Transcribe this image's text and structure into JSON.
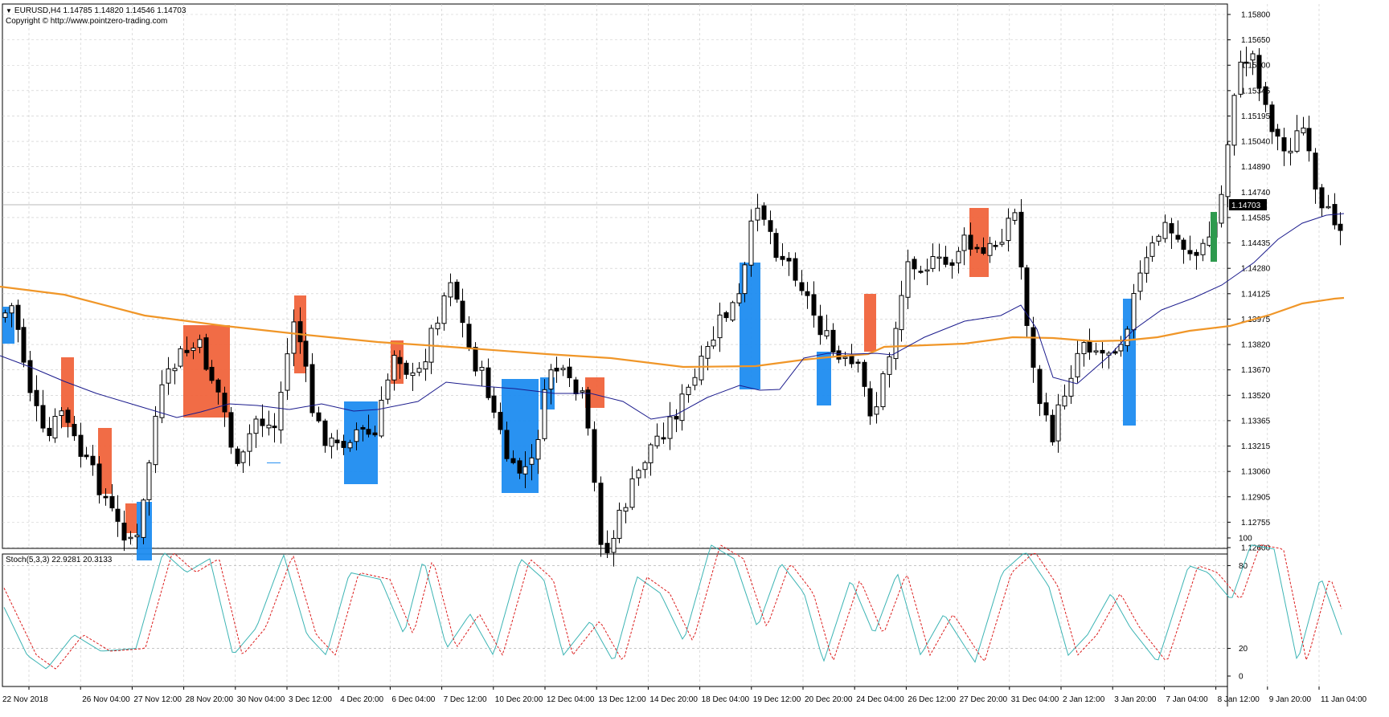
{
  "header": {
    "symbol_line": "EURUSD,H4  1.14785 1.14820 1.14546 1.14703",
    "copyright": "Copyright © http://www.pointzero-trading.com"
  },
  "price_axis": {
    "labels": [
      "1.15800",
      "1.15650",
      "1.15500",
      "1.15345",
      "1.15195",
      "1.15040",
      "1.14890",
      "1.14740",
      "1.14585",
      "1.14435",
      "1.14280",
      "1.14125",
      "1.13975",
      "1.13820",
      "1.13670",
      "1.13520",
      "1.13365",
      "1.13215",
      "1.13060",
      "1.12905",
      "1.12755",
      "1.12600"
    ],
    "current_price": "1.14703"
  },
  "stoch": {
    "label": "Stoch(5,3,3) 22.9281 20.3133",
    "levels": [
      "100",
      "80",
      "20",
      "0"
    ]
  },
  "time_axis": {
    "labels": [
      "22 Nov 2018",
      "26 Nov 04:00",
      "27 Nov 12:00",
      "28 Nov 20:00",
      "30 Nov 04:00",
      "3 Dec 12:00",
      "4 Dec 20:00",
      "6 Dec 04:00",
      "7 Dec 12:00",
      "10 Dec 20:00",
      "12 Dec 04:00",
      "13 Dec 12:00",
      "14 Dec 20:00",
      "18 Dec 04:00",
      "19 Dec 12:00",
      "20 Dec 20:00",
      "24 Dec 04:00",
      "26 Dec 12:00",
      "27 Dec 20:00",
      "31 Dec 04:00",
      "2 Jan 12:00",
      "3 Jan 20:00",
      "7 Jan 04:00",
      "8 Jan 12:00",
      "9 Jan 20:00",
      "11 Jan 04:00"
    ]
  },
  "colors": {
    "bull_zone": "#1e8cf0",
    "bear_zone": "#f0643c",
    "ma_fast": "#1a1a8c",
    "ma_slow": "#f09628",
    "stoch_main": "#3cb4b4",
    "stoch_signal": "#dc1e1e",
    "green_candle": "#2e9a4e",
    "grid": "#c8c8c8"
  },
  "chart_data": {
    "type": "candlestick",
    "symbol": "EURUSD",
    "timeframe": "H4",
    "ylim": [
      1.126,
      1.158
    ],
    "last_bar": {
      "open": 1.14785,
      "high": 1.1482,
      "low": 1.14546,
      "close": 1.14703
    },
    "grid": true,
    "series": [
      {
        "name": "Stoch(5,3,3)",
        "ylim": [
          0,
          100
        ],
        "levels": [
          20,
          80
        ],
        "last_main": 22.9281,
        "last_signal": 20.3133
      }
    ]
  }
}
